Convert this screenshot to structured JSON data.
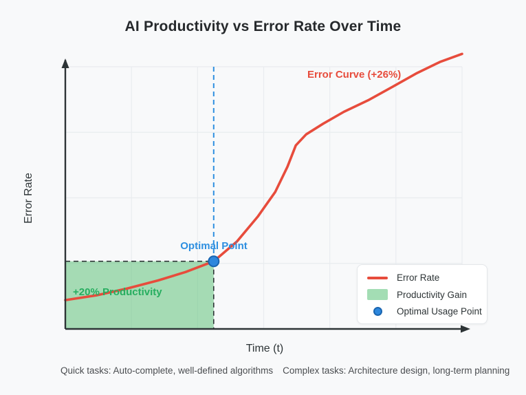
{
  "title": "AI Productivity vs Error Rate Over Time",
  "axes": {
    "x_label": "Time (t)",
    "y_label": "Error Rate"
  },
  "annotations": {
    "error_curve_label": "Error Curve (+26%)",
    "optimal_point_label": "Optimal Point",
    "productivity_region_label": "+20% Productivity"
  },
  "legend": {
    "items": [
      {
        "label": "Error Rate",
        "swatch": "line-swatch",
        "color": "#e74c3c"
      },
      {
        "label": "Productivity Gain",
        "swatch": "rect-swatch",
        "color": "#a3ddb4"
      },
      {
        "label": "Optimal Usage Point",
        "swatch": "dot-swatch",
        "color": "#2d87dd"
      }
    ]
  },
  "footnotes": {
    "quick_tasks": "Quick tasks: Auto-complete, well-defined algorithms",
    "complex_tasks": "Complex tasks: Architecture design, long-term planning"
  },
  "colors": {
    "background": "#f8f9fa",
    "axis": "#2d3436",
    "grid": "#e9ecef",
    "error_curve": "#e74c3c",
    "productivity_fill": "rgba(96,194,122,0.55)",
    "productivity_text": "#27ae60",
    "optimal_blue": "#2e8fe0",
    "optimal_dot_fill": "#2d87dd",
    "optimal_dot_border": "#1a65b0",
    "dashed_guide_dark": "#2d3436"
  },
  "chart_data": {
    "type": "line",
    "title": "AI Productivity vs Error Rate Over Time",
    "xlabel": "Time (t)",
    "ylabel": "Error Rate",
    "x_range": [
      0,
      1
    ],
    "y_range": [
      0,
      1
    ],
    "axis_ticks": "none (qualitative conceptual axes with arrowheads)",
    "grid": {
      "visible": true,
      "v_divisions": 6,
      "h_divisions": 4
    },
    "legend_position": "bottom-right",
    "series": [
      {
        "name": "Error Rate",
        "color": "#e74c3c",
        "shape": "sigmoid-like rise with kink at ~x=0.58",
        "points": [
          [
            0.0,
            0.11
          ],
          [
            0.078,
            0.128
          ],
          [
            0.156,
            0.154
          ],
          [
            0.234,
            0.185
          ],
          [
            0.303,
            0.217
          ],
          [
            0.374,
            0.258
          ],
          [
            0.433,
            0.334
          ],
          [
            0.485,
            0.428
          ],
          [
            0.529,
            0.522
          ],
          [
            0.56,
            0.619
          ],
          [
            0.581,
            0.7
          ],
          [
            0.607,
            0.742
          ],
          [
            0.65,
            0.783
          ],
          [
            0.702,
            0.828
          ],
          [
            0.763,
            0.872
          ],
          [
            0.823,
            0.922
          ],
          [
            0.884,
            0.974
          ],
          [
            0.944,
            1.018
          ],
          [
            1.0,
            1.049
          ]
        ]
      }
    ],
    "shaded_region": {
      "label": "+20% Productivity",
      "x": [
        0,
        0.374
      ],
      "y": [
        0,
        0.258
      ],
      "fill": "rgba(96,194,122,0.55)",
      "border": "dashed dark on top and right edges"
    },
    "optimal_point": {
      "label": "Optimal Point",
      "x": 0.374,
      "y": 0.258,
      "marker": "filled circle",
      "color": "#2d87dd",
      "guides": "blue dashed vertical above point, dark dashed vertical below, dark dashed horizontal to y-axis"
    }
  }
}
